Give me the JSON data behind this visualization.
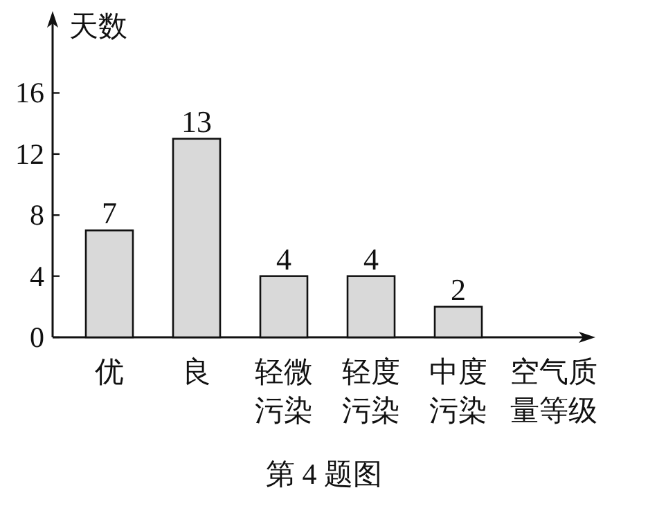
{
  "chart_data": {
    "type": "bar",
    "ylabel": "天数",
    "xlabel": "空气质量等级",
    "categories": [
      "优",
      "良",
      "轻微污染",
      "轻度污染",
      "中度污染"
    ],
    "values": [
      7,
      13,
      4,
      4,
      2
    ],
    "color": "#d9d9d9",
    "data_labels": true,
    "ylim": [
      0,
      21
    ],
    "yticks": [
      0,
      4,
      8,
      12,
      16
    ],
    "grid": false,
    "annotations": [
      "第 4 题图"
    ]
  }
}
